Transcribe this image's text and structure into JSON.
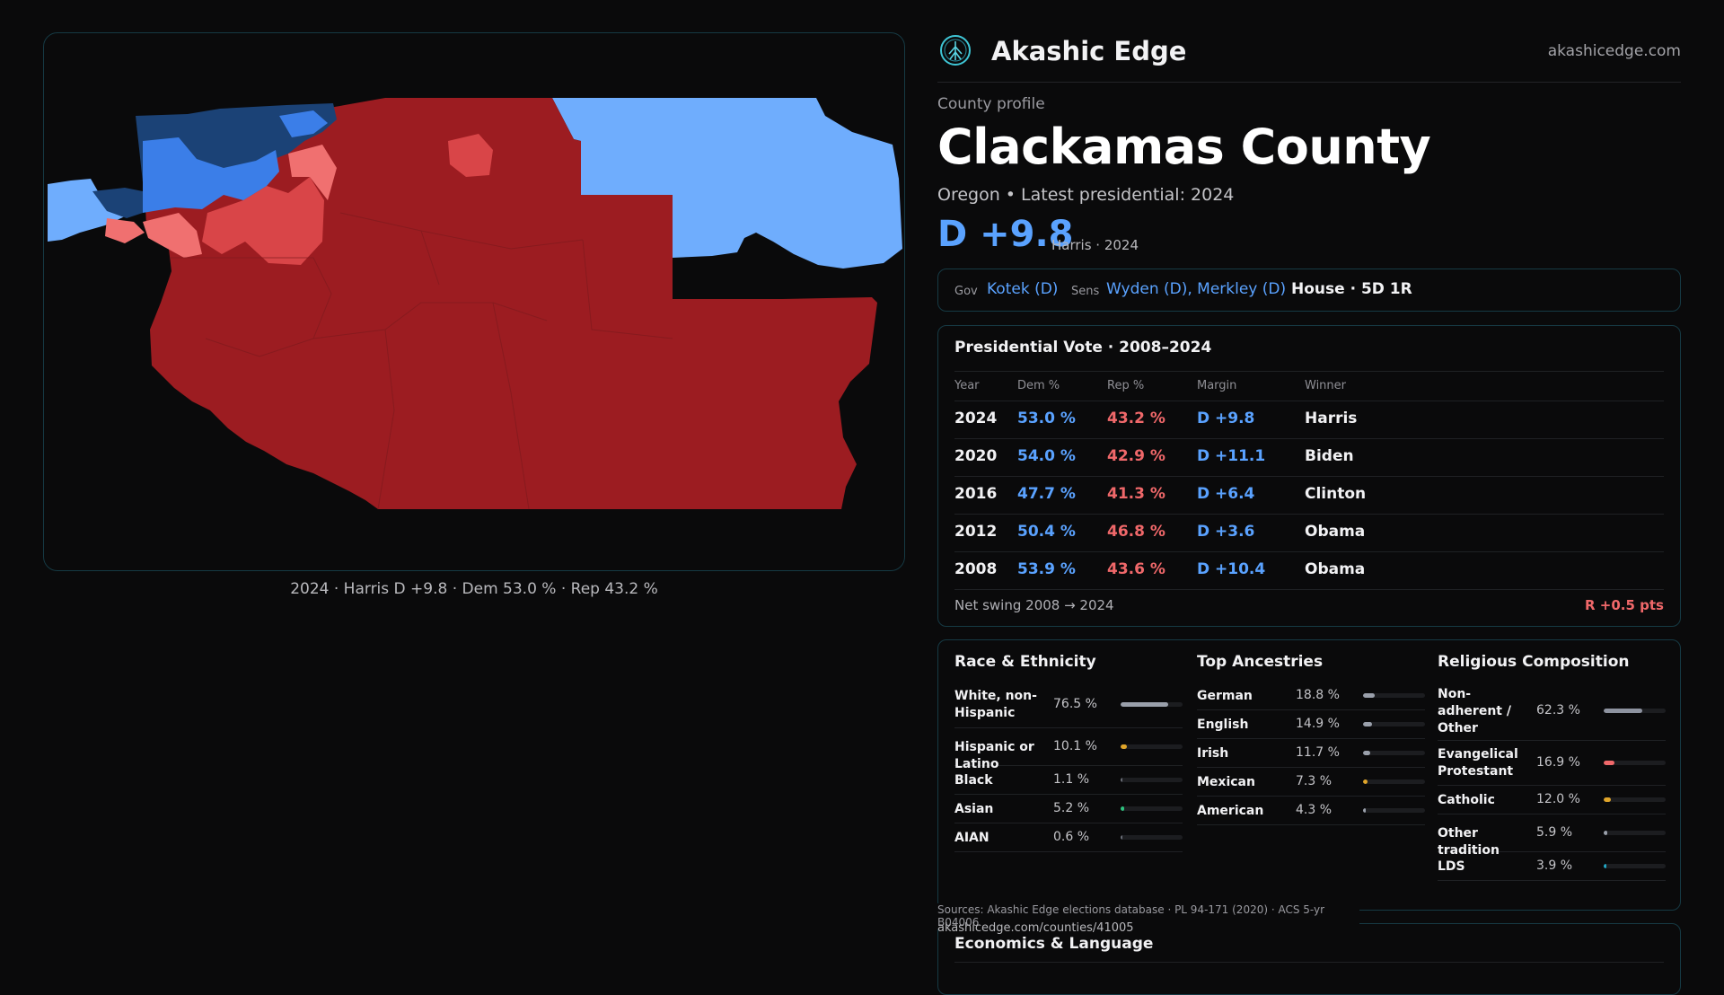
{
  "brand": {
    "name": "Akashic Edge",
    "url": "akashicedge.com",
    "logo_icon": "tree-of-life-icon"
  },
  "profile": {
    "eyebrow": "County profile",
    "title": "Clackamas County",
    "subtitle": "Oregon • Latest presidential: 2024",
    "margin": "D +9.8",
    "margin_note": "Harris · 2024"
  },
  "officials": {
    "gov_label": "Gov",
    "gov": "Kotek (D)",
    "sens_label": "Sens",
    "sens": "Wyden (D), Merkley (D)",
    "house": "House · 5D 1R"
  },
  "map": {
    "caption": "2024 · Harris D +9.8 · Dem 53.0 % · Rep 43.2 %",
    "colors": {
      "dem_strong": "#1b4276",
      "dem_mid": "#3b7ee8",
      "dem_light": "#6fadfd",
      "rep_light": "#f07070",
      "rep_mid": "#d94548",
      "rep_strong": "#9c1c21"
    }
  },
  "presidential": {
    "title": "Presidential Vote · 2008–2024",
    "headers": {
      "year": "Year",
      "dem": "Dem %",
      "rep": "Rep %",
      "margin": "Margin",
      "winner": "Winner"
    },
    "rows": [
      {
        "year": "2024",
        "dem": "53.0 %",
        "rep": "43.2 %",
        "margin": "D +9.8",
        "winner": "Harris"
      },
      {
        "year": "2020",
        "dem": "54.0 %",
        "rep": "42.9 %",
        "margin": "D +11.1",
        "winner": "Biden"
      },
      {
        "year": "2016",
        "dem": "47.7 %",
        "rep": "41.3 %",
        "margin": "D +6.4",
        "winner": "Clinton"
      },
      {
        "year": "2012",
        "dem": "50.4 %",
        "rep": "46.8 %",
        "margin": "D +3.6",
        "winner": "Obama"
      },
      {
        "year": "2008",
        "dem": "53.9 %",
        "rep": "43.6 %",
        "margin": "D +10.4",
        "winner": "Obama"
      }
    ],
    "swing_label": "Net swing 2008 → 2024",
    "swing_value": "R +0.5 pts"
  },
  "race": {
    "title": "Race & Ethnicity",
    "items": [
      {
        "label": "White, non-Hispanic",
        "value": "76.5 %",
        "pct": 76.5,
        "color": "#9aa0ab"
      },
      {
        "label": "Hispanic or Latino",
        "value": "10.1 %",
        "pct": 10.1,
        "color": "#e0a52a"
      },
      {
        "label": "Black",
        "value": "1.1 %",
        "pct": 1.1,
        "color": "#6b6f78"
      },
      {
        "label": "Asian",
        "value": "5.2 %",
        "pct": 5.2,
        "color": "#2ec27e"
      },
      {
        "label": "AIAN",
        "value": "0.6 %",
        "pct": 0.6,
        "color": "#6b6f78"
      }
    ]
  },
  "ancestry": {
    "title": "Top Ancestries",
    "items": [
      {
        "label": "German",
        "value": "18.8 %",
        "pct": 18.8,
        "color": "#9aa0ab"
      },
      {
        "label": "English",
        "value": "14.9 %",
        "pct": 14.9,
        "color": "#9aa0ab"
      },
      {
        "label": "Irish",
        "value": "11.7 %",
        "pct": 11.7,
        "color": "#9aa0ab"
      },
      {
        "label": "Mexican",
        "value": "7.3 %",
        "pct": 7.3,
        "color": "#e0a52a"
      },
      {
        "label": "American",
        "value": "4.3 %",
        "pct": 4.3,
        "color": "#9aa0ab"
      }
    ]
  },
  "religion": {
    "title": "Religious Composition",
    "items": [
      {
        "label": "Non-adherent / Other",
        "value": "62.3 %",
        "pct": 62.3,
        "color": "#8e93a0"
      },
      {
        "label": "Evangelical Protestant",
        "value": "16.9 %",
        "pct": 16.9,
        "color": "#f0686a"
      },
      {
        "label": "Catholic",
        "value": "12.0 %",
        "pct": 12.0,
        "color": "#e0a52a"
      },
      {
        "label": "Other tradition",
        "value": "5.9 %",
        "pct": 5.9,
        "color": "#9aa0ab"
      },
      {
        "label": "LDS",
        "value": "3.9 %",
        "pct": 3.9,
        "color": "#22a7c4"
      }
    ]
  },
  "sources": {
    "text": "Sources: Akashic Edge elections database · PL 94-171 (2020) · ACS 5-yr B04006",
    "url": "akashicedge.com/counties/41005"
  },
  "economics": {
    "title": "Economics & Language"
  }
}
